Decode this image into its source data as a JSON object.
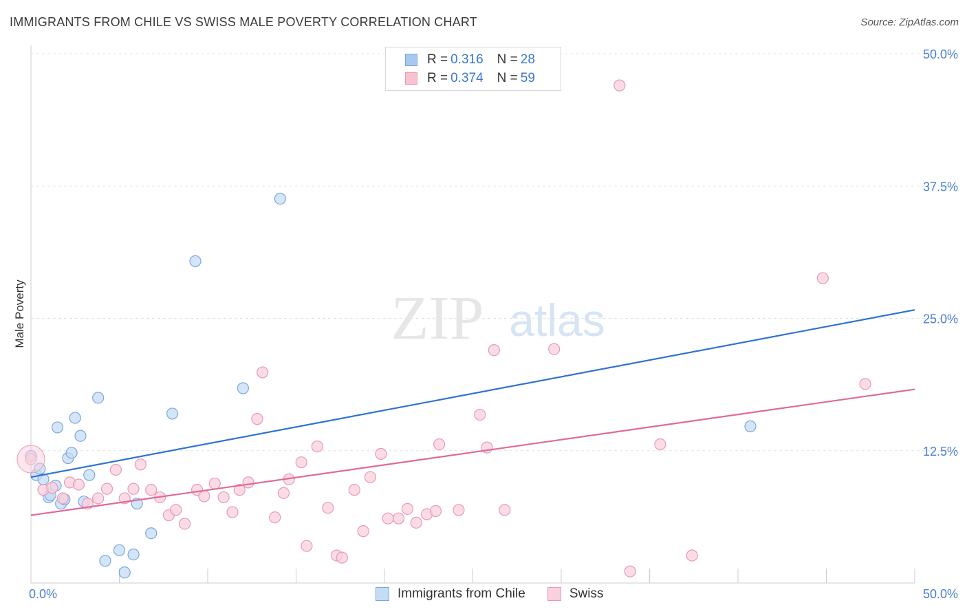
{
  "title": "IMMIGRANTS FROM CHILE VS SWISS MALE POVERTY CORRELATION CHART",
  "source": "Source: ZipAtlas.com",
  "watermark": {
    "zip": "ZIP",
    "atlas": "atlas"
  },
  "legend_top": [
    {
      "r_label": "R = ",
      "r_value": "0.316",
      "n_label": "N = ",
      "n_value": "28",
      "color": "#a9c8f0",
      "border": "#7aa6e0"
    },
    {
      "r_label": "R = ",
      "r_value": "0.374",
      "n_label": "N = ",
      "n_value": "59",
      "color": "#f8c2d2",
      "border": "#e899b4"
    }
  ],
  "legend_bottom": [
    {
      "label": "Immigrants from Chile",
      "color": "#c5dcf6",
      "border": "#7aa6e0"
    },
    {
      "label": "Swiss",
      "color": "#f9d0dd",
      "border": "#e899b4"
    }
  ],
  "chart_data": {
    "type": "scatter",
    "title": "IMMIGRANTS FROM CHILE VS SWISS MALE POVERTY CORRELATION CHART",
    "xlabel": "",
    "ylabel": "Male Poverty",
    "xlim": [
      0,
      50
    ],
    "ylim": [
      0,
      50
    ],
    "x_tick_labels": [
      "0.0%",
      "50.0%"
    ],
    "y_ticks": [
      12.5,
      25.0,
      37.5,
      50.0
    ],
    "y_tick_labels": [
      "12.5%",
      "25.0%",
      "37.5%",
      "50.0%"
    ],
    "grid": "horizontal dashed",
    "legend_position": "top-center",
    "series": [
      {
        "name": "Immigrants from Chile",
        "color": "#7aa6e0",
        "fill": "#c5dcf6",
        "trend_color": "#2e72d2",
        "trend": [
          [
            0,
            10.0
          ],
          [
            50,
            25.8
          ]
        ],
        "points": [
          [
            0.0,
            12.0
          ],
          [
            0.3,
            10.2
          ],
          [
            0.5,
            10.8
          ],
          [
            0.7,
            9.8
          ],
          [
            1.0,
            8.1
          ],
          [
            1.1,
            8.3
          ],
          [
            1.4,
            9.2
          ],
          [
            1.5,
            14.7
          ],
          [
            1.7,
            7.5
          ],
          [
            1.9,
            7.9
          ],
          [
            2.1,
            11.8
          ],
          [
            2.3,
            12.3
          ],
          [
            2.5,
            15.6
          ],
          [
            2.8,
            13.9
          ],
          [
            3.0,
            7.7
          ],
          [
            3.3,
            10.2
          ],
          [
            3.8,
            17.5
          ],
          [
            4.2,
            2.1
          ],
          [
            5.0,
            3.1
          ],
          [
            5.3,
            1.0
          ],
          [
            5.8,
            2.7
          ],
          [
            6.0,
            7.5
          ],
          [
            6.8,
            4.7
          ],
          [
            8.0,
            16.0
          ],
          [
            9.3,
            30.4
          ],
          [
            12.0,
            18.4
          ],
          [
            14.1,
            36.3
          ],
          [
            40.7,
            14.8
          ]
        ]
      },
      {
        "name": "Swiss",
        "color": "#e899b4",
        "fill": "#f9d0dd",
        "trend_color": "#e0689a",
        "trend": [
          [
            0,
            6.4
          ],
          [
            50,
            18.3
          ]
        ],
        "points": [
          [
            0.0,
            11.7
          ],
          [
            0.7,
            8.8
          ],
          [
            1.2,
            9.0
          ],
          [
            1.8,
            8.0
          ],
          [
            2.2,
            9.5
          ],
          [
            2.7,
            9.3
          ],
          [
            3.2,
            7.5
          ],
          [
            3.8,
            8.0
          ],
          [
            4.3,
            8.9
          ],
          [
            4.8,
            10.7
          ],
          [
            5.3,
            8.0
          ],
          [
            5.8,
            8.9
          ],
          [
            6.2,
            11.2
          ],
          [
            6.8,
            8.8
          ],
          [
            7.3,
            8.1
          ],
          [
            7.8,
            6.4
          ],
          [
            8.2,
            6.9
          ],
          [
            8.7,
            5.6
          ],
          [
            9.4,
            8.8
          ],
          [
            9.8,
            8.2
          ],
          [
            10.4,
            9.4
          ],
          [
            10.9,
            8.1
          ],
          [
            11.4,
            6.7
          ],
          [
            11.8,
            8.8
          ],
          [
            12.3,
            9.5
          ],
          [
            12.8,
            15.5
          ],
          [
            13.1,
            19.9
          ],
          [
            13.8,
            6.2
          ],
          [
            14.3,
            8.5
          ],
          [
            14.6,
            9.8
          ],
          [
            15.3,
            11.4
          ],
          [
            15.6,
            3.5
          ],
          [
            16.2,
            12.9
          ],
          [
            16.8,
            7.1
          ],
          [
            17.3,
            2.6
          ],
          [
            17.6,
            2.4
          ],
          [
            18.3,
            8.8
          ],
          [
            18.8,
            4.9
          ],
          [
            19.2,
            10.0
          ],
          [
            19.8,
            12.2
          ],
          [
            20.2,
            6.1
          ],
          [
            20.8,
            6.1
          ],
          [
            21.3,
            7.0
          ],
          [
            21.8,
            5.7
          ],
          [
            22.4,
            6.5
          ],
          [
            22.9,
            6.8
          ],
          [
            23.1,
            13.1
          ],
          [
            24.2,
            6.9
          ],
          [
            25.4,
            15.9
          ],
          [
            25.8,
            12.8
          ],
          [
            26.2,
            22.0
          ],
          [
            26.8,
            6.9
          ],
          [
            29.6,
            22.1
          ],
          [
            33.3,
            47.0
          ],
          [
            33.9,
            1.1
          ],
          [
            35.6,
            13.1
          ],
          [
            37.4,
            2.6
          ],
          [
            44.8,
            28.8
          ],
          [
            47.2,
            18.8
          ]
        ]
      }
    ]
  }
}
